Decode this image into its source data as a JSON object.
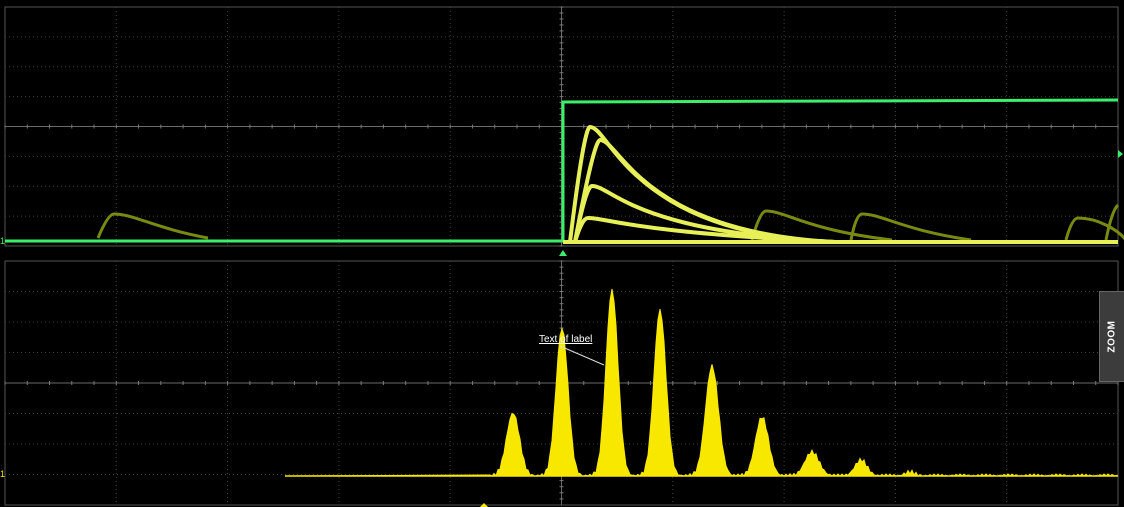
{
  "top_panel": {
    "channel_marker": "1",
    "colors": {
      "step": "#3cee6a",
      "pulses": "#e8f058",
      "ghost": "#7a8a10",
      "grid": "#404040",
      "grid_dot": "#7a7a7a"
    }
  },
  "bottom_panel": {
    "channel_marker": "1",
    "colors": {
      "histogram": "#f8e800"
    }
  },
  "annotation": {
    "text": "Text of label"
  },
  "zoom_tab": {
    "label": "ZOOM"
  }
}
